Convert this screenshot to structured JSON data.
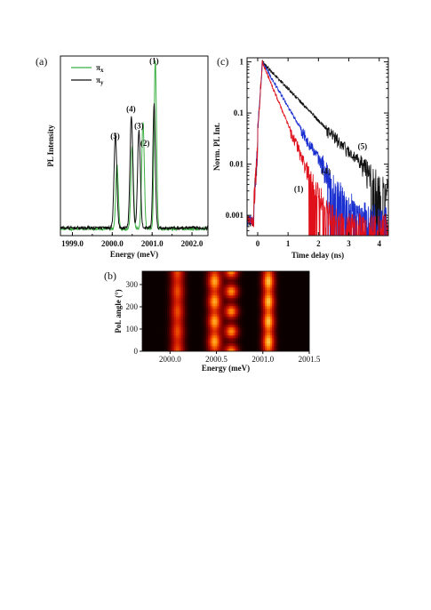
{
  "panels": {
    "a": "(a)",
    "b": "(b)",
    "c": "(c)"
  },
  "chart_data": [
    {
      "id": "a",
      "type": "line",
      "xlabel": "Energy (meV)",
      "ylabel": "PL Intensity",
      "xlim": [
        1998.7,
        2002.4
      ],
      "xticks": [
        "1999.0",
        "2000.0",
        "2001.0",
        "2002.0"
      ],
      "xtick_values": [
        1999.0,
        2000.0,
        2001.0,
        2002.0
      ],
      "ylim": [
        0,
        1.05
      ],
      "legend": {
        "position": "top-left",
        "entries": [
          {
            "name": "π",
            "sub": "x",
            "color": "#3cb043"
          },
          {
            "name": "π",
            "sub": "y",
            "color": "#111111"
          }
        ]
      },
      "series": [
        {
          "name": "πx",
          "color": "#3cb043",
          "baseline": 0.04,
          "peaks": [
            {
              "center": 2000.12,
              "height": 0.38,
              "width": 0.032
            },
            {
              "center": 2000.5,
              "height": 0.48,
              "width": 0.032
            },
            {
              "center": 2000.77,
              "height": 0.63,
              "width": 0.032
            },
            {
              "center": 2001.08,
              "height": 0.98,
              "width": 0.03
            }
          ]
        },
        {
          "name": "πy",
          "color": "#111111",
          "baseline": 0.045,
          "peaks": [
            {
              "center": 2000.08,
              "height": 0.55,
              "width": 0.035
            },
            {
              "center": 2000.48,
              "height": 0.65,
              "width": 0.035
            },
            {
              "center": 2000.67,
              "height": 0.57,
              "width": 0.035
            },
            {
              "center": 2001.05,
              "height": 0.73,
              "width": 0.03
            }
          ]
        }
      ],
      "annotations": [
        {
          "text": "(1)",
          "x": 2001.05,
          "y": 0.99
        },
        {
          "text": "(2)",
          "x": 2000.82,
          "y": 0.51
        },
        {
          "text": "(3)",
          "x": 2000.67,
          "y": 0.61
        },
        {
          "text": "(4)",
          "x": 2000.47,
          "y": 0.71
        },
        {
          "text": "(5)",
          "x": 2000.07,
          "y": 0.55
        }
      ]
    },
    {
      "id": "b",
      "type": "heatmap",
      "xlabel": "Energy (meV)",
      "ylabel": "Pol. angle (°)",
      "xlim": [
        1999.7,
        2001.5
      ],
      "xticks": [
        "2000.0",
        "2000.5",
        "2001.0",
        "2001.5"
      ],
      "xtick_values": [
        2000.0,
        2000.5,
        2001.0,
        2001.5
      ],
      "ylim": [
        0,
        360
      ],
      "yticks": [
        "0",
        "100",
        "200",
        "300"
      ],
      "ytick_values": [
        0,
        100,
        200,
        300
      ],
      "colormap": [
        "#000000",
        "#7a0000",
        "#d01800",
        "#ff7a00",
        "#ffe060"
      ],
      "lines": [
        {
          "center": 2000.08,
          "width": 0.05,
          "amp": 0.62,
          "mod": 0.18,
          "phase": 0
        },
        {
          "center": 2000.48,
          "width": 0.05,
          "amp": 0.85,
          "mod": 0.35,
          "phase": 1
        },
        {
          "center": 2000.66,
          "width": 0.05,
          "amp": 0.78,
          "mod": 0.75,
          "phase": 0
        },
        {
          "center": 2001.06,
          "width": 0.045,
          "amp": 0.92,
          "mod": 0.3,
          "phase": 1
        }
      ]
    },
    {
      "id": "c",
      "type": "line",
      "xlabel": "Time delay (ns)",
      "ylabel": "Norm. PL Int.",
      "xlim": [
        -0.35,
        4.3
      ],
      "xticks": [
        "0",
        "1",
        "2",
        "3",
        "4"
      ],
      "xtick_values": [
        0,
        1,
        2,
        3,
        4
      ],
      "ylim": [
        0.0004,
        1.2
      ],
      "yscale": "log",
      "yticks": [
        "0.001",
        "0.01",
        "0.1",
        "1"
      ],
      "ytick_values": [
        0.001,
        0.01,
        0.1,
        1
      ],
      "series": [
        {
          "name": "(5)",
          "color": "#111111",
          "tau_ns": 0.7,
          "noise_floor": 0.0009
        },
        {
          "name": "(4)",
          "color": "#1a2fd0",
          "tau_ns": 0.42,
          "noise_floor": 0.0012
        },
        {
          "name": "(1)",
          "color": "#e0101a",
          "tau_ns": 0.3,
          "noise_floor": 0.0009
        }
      ],
      "annotations": [
        {
          "text": "(5)",
          "x": 3.45,
          "y": 0.02
        },
        {
          "text": "(4)",
          "x": 2.25,
          "y": 0.0065
        },
        {
          "text": "(1)",
          "x": 1.35,
          "y": 0.0029
        }
      ]
    }
  ]
}
